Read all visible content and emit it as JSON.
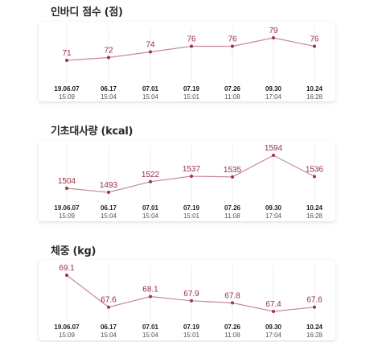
{
  "colors": {
    "line": "#c68a97",
    "marker": "#a6304a",
    "value_text": "#9c2c44",
    "grid": "#eeeeee"
  },
  "x_axis": [
    {
      "date": "19.06.07",
      "time": "15:09"
    },
    {
      "date": "06.17",
      "time": "15:04"
    },
    {
      "date": "07.01",
      "time": "15:04"
    },
    {
      "date": "07.19",
      "time": "15:01"
    },
    {
      "date": "07.26",
      "time": "11:08"
    },
    {
      "date": "09.30",
      "time": "17:04"
    },
    {
      "date": "10.24",
      "time": "16:28"
    }
  ],
  "charts": [
    {
      "key": "inbody",
      "title": "인바디 점수 (점)",
      "values": [
        "71",
        "72",
        "74",
        "76",
        "76",
        "79",
        "76"
      ]
    },
    {
      "key": "bmr",
      "title": "기초대사량 (kcal)",
      "values": [
        "1504",
        "1493",
        "1522",
        "1537",
        "1535",
        "1594",
        "1536"
      ]
    },
    {
      "key": "weight",
      "title": "체중 (kg)",
      "values": [
        "69.1",
        "67.6",
        "68.1",
        "67.9",
        "67.8",
        "67.4",
        "67.6"
      ]
    }
  ],
  "chart_data": [
    {
      "type": "line",
      "title": "인바디 점수 (점)",
      "categories": [
        "19.06.07 15:09",
        "06.17 15:04",
        "07.01 15:04",
        "07.19 15:01",
        "07.26 11:08",
        "09.30 17:04",
        "10.24 16:28"
      ],
      "values": [
        71,
        72,
        74,
        76,
        76,
        79,
        76
      ]
    },
    {
      "type": "line",
      "title": "기초대사량 (kcal)",
      "categories": [
        "19.06.07 15:09",
        "06.17 15:04",
        "07.01 15:04",
        "07.19 15:01",
        "07.26 11:08",
        "09.30 17:04",
        "10.24 16:28"
      ],
      "values": [
        1504,
        1493,
        1522,
        1537,
        1535,
        1594,
        1536
      ]
    },
    {
      "type": "line",
      "title": "체중 (kg)",
      "categories": [
        "19.06.07 15:09",
        "06.17 15:04",
        "07.01 15:04",
        "07.19 15:01",
        "07.26 11:08",
        "09.30 17:04",
        "10.24 16:28"
      ],
      "values": [
        69.1,
        67.6,
        68.1,
        67.9,
        67.8,
        67.4,
        67.6
      ]
    }
  ]
}
